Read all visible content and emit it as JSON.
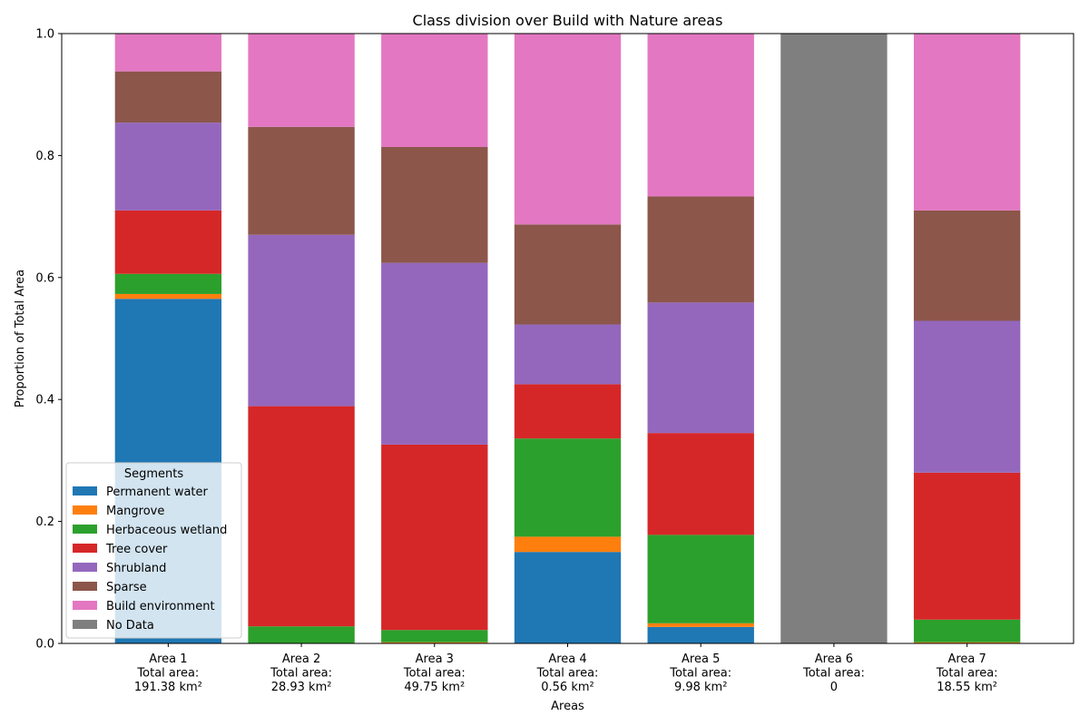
{
  "chart_data": {
    "type": "bar",
    "stacked": true,
    "title": "Class division over Build with Nature areas",
    "xlabel": "Areas",
    "ylabel": "Proportion of Total Area",
    "ylim": [
      0,
      1.0
    ],
    "yticks": [
      "0.0",
      "0.2",
      "0.4",
      "0.6",
      "0.8",
      "1.0"
    ],
    "ytick_values": [
      0,
      0.2,
      0.4,
      0.6,
      0.8,
      1.0
    ],
    "categories": [
      [
        "Area 1",
        "Total area:",
        "191.38 km²"
      ],
      [
        "Area 2",
        "Total area:",
        "28.93 km²"
      ],
      [
        "Area 3",
        "Total area:",
        "49.75 km²"
      ],
      [
        "Area 4",
        "Total area:",
        "0.56 km²"
      ],
      [
        "Area 5",
        "Total area:",
        "9.98 km²"
      ],
      [
        "Area 6",
        "Total area:",
        "0"
      ],
      [
        "Area 7",
        "Total area:",
        "18.55 km²"
      ]
    ],
    "legend_title": "Segments",
    "legend_position": "lower-left",
    "grid": false,
    "series": [
      {
        "name": "Permanent water",
        "color": "#1f77b4",
        "values": [
          0.565,
          0.0,
          0.0,
          0.15,
          0.027,
          0.0,
          0.0
        ]
      },
      {
        "name": "Mangrove",
        "color": "#ff7f0e",
        "values": [
          0.008,
          0.0,
          0.002,
          0.025,
          0.006,
          0.0,
          0.002
        ]
      },
      {
        "name": "Herbaceous wetland",
        "color": "#2ca02c",
        "values": [
          0.033,
          0.028,
          0.02,
          0.161,
          0.145,
          0.0,
          0.037
        ]
      },
      {
        "name": "Tree cover",
        "color": "#d62728",
        "values": [
          0.104,
          0.361,
          0.304,
          0.089,
          0.167,
          0.0,
          0.241
        ]
      },
      {
        "name": "Shrubland",
        "color": "#9467bd",
        "values": [
          0.144,
          0.281,
          0.298,
          0.098,
          0.214,
          0.0,
          0.249
        ]
      },
      {
        "name": "Sparse",
        "color": "#8c564b",
        "values": [
          0.084,
          0.177,
          0.19,
          0.164,
          0.174,
          0.0,
          0.181
        ]
      },
      {
        "name": "Build environment",
        "color": "#e377c2",
        "values": [
          0.062,
          0.153,
          0.186,
          0.313,
          0.267,
          0.0,
          0.29
        ]
      },
      {
        "name": "No Data",
        "color": "#7f7f7f",
        "values": [
          0.0,
          0.0,
          0.0,
          0.0,
          0.0,
          1.0,
          0.0
        ]
      }
    ]
  }
}
